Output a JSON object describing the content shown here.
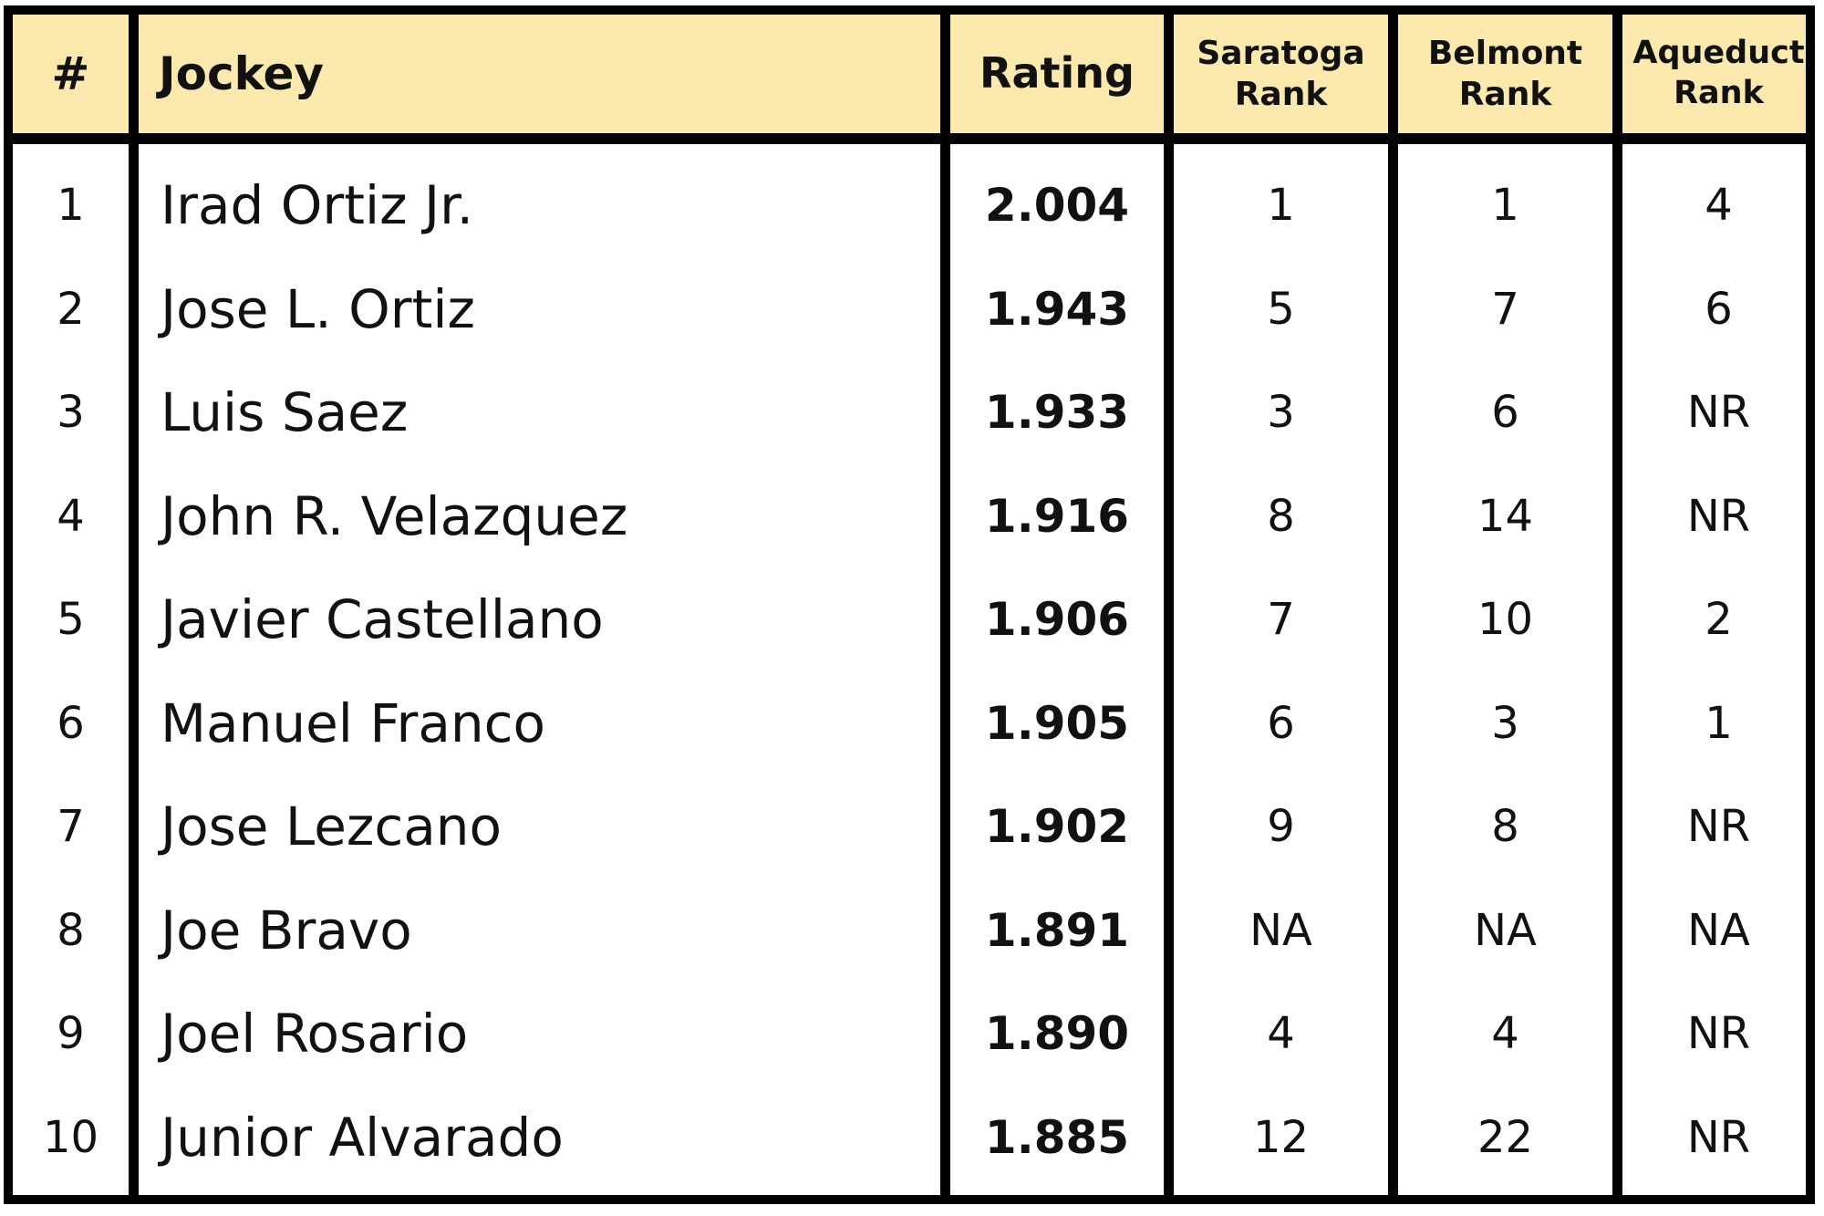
{
  "table": {
    "headers": {
      "num": "#",
      "jockey": "Jockey",
      "rating": "Rating",
      "saratoga": [
        "Saratoga",
        "Rank"
      ],
      "belmont": [
        "Belmont",
        "Rank"
      ],
      "aqueduct": [
        "Aqueduct",
        "Rank"
      ]
    },
    "rows": [
      {
        "num": "1",
        "jockey": "Irad Ortiz Jr.",
        "rating": "2.004",
        "saratoga": "1",
        "belmont": "1",
        "aqueduct": "4"
      },
      {
        "num": "2",
        "jockey": "Jose L. Ortiz",
        "rating": "1.943",
        "saratoga": "5",
        "belmont": "7",
        "aqueduct": "6"
      },
      {
        "num": "3",
        "jockey": "Luis Saez",
        "rating": "1.933",
        "saratoga": "3",
        "belmont": "6",
        "aqueduct": "NR"
      },
      {
        "num": "4",
        "jockey": "John R. Velazquez",
        "rating": "1.916",
        "saratoga": "8",
        "belmont": "14",
        "aqueduct": "NR"
      },
      {
        "num": "5",
        "jockey": "Javier Castellano",
        "rating": "1.906",
        "saratoga": "7",
        "belmont": "10",
        "aqueduct": "2"
      },
      {
        "num": "6",
        "jockey": "Manuel Franco",
        "rating": "1.905",
        "saratoga": "6",
        "belmont": "3",
        "aqueduct": "1"
      },
      {
        "num": "7",
        "jockey": "Jose Lezcano",
        "rating": "1.902",
        "saratoga": "9",
        "belmont": "8",
        "aqueduct": "NR"
      },
      {
        "num": "8",
        "jockey": "Joe Bravo",
        "rating": "1.891",
        "saratoga": "NA",
        "belmont": "NA",
        "aqueduct": "NA"
      },
      {
        "num": "9",
        "jockey": "Joel Rosario",
        "rating": "1.890",
        "saratoga": "4",
        "belmont": "4",
        "aqueduct": "NR"
      },
      {
        "num": "10",
        "jockey": "Junior Alvarado",
        "rating": "1.885",
        "saratoga": "12",
        "belmont": "22",
        "aqueduct": "NR"
      }
    ]
  },
  "colors": {
    "header_background": "#fbe9ad",
    "border": "#000000",
    "text": "#111111"
  }
}
